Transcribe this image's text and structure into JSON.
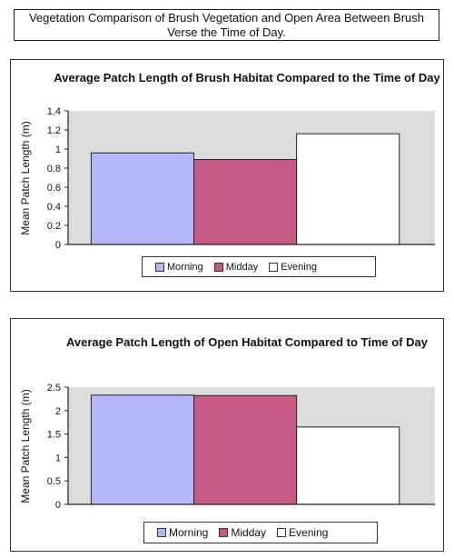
{
  "page": {
    "title": "Vegetation Comparison of Brush Vegetation and Open Area Between Brush Verse the Time of Day."
  },
  "colors": {
    "morning": "#b3b6fb",
    "midday": "#c65a86",
    "evening": "#ffffff",
    "plot_area": "#dcdcdc"
  },
  "chart_data": [
    {
      "type": "bar",
      "title": "Average Patch Length of Brush Habitat Compared to the Time of Day",
      "ylabel": "Mean Patch Length (m)",
      "xlabel": "",
      "categories": [
        "Morning",
        "Midday",
        "Evening"
      ],
      "values": [
        0.96,
        0.89,
        1.16
      ],
      "ylim": [
        0,
        1.4
      ],
      "yticks": [
        "0",
        "0.2",
        "0.4",
        "0.6",
        "0.8",
        "1",
        "1.2",
        "1.4"
      ],
      "grid": false,
      "legend": {
        "position": "bottom",
        "entries": [
          "Morning",
          "Midday",
          "Evening"
        ]
      }
    },
    {
      "type": "bar",
      "title": "Average Patch Length of Open Habitat Compared to Time of Day",
      "ylabel": "Mean Patch Length (m)",
      "xlabel": "",
      "categories": [
        "Morning",
        "Midday",
        "Evening"
      ],
      "values": [
        2.33,
        2.32,
        1.65
      ],
      "ylim": [
        0,
        2.5
      ],
      "yticks": [
        "0",
        "0.5",
        "1",
        "1.5",
        "2",
        "2.5"
      ],
      "grid": false,
      "legend": {
        "position": "bottom",
        "entries": [
          "Morning",
          "Midday",
          "Evening"
        ]
      }
    }
  ]
}
